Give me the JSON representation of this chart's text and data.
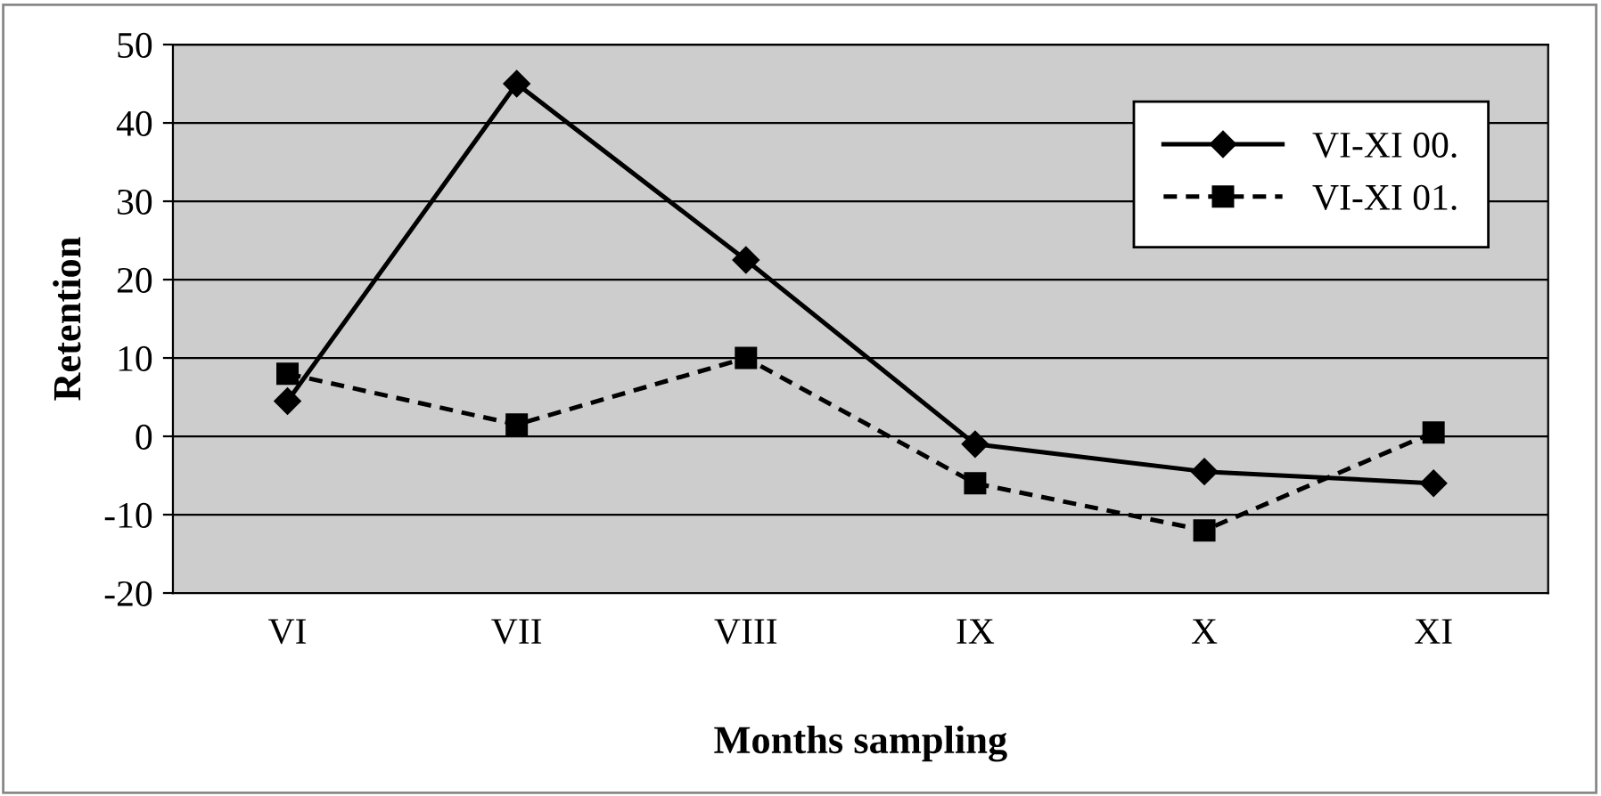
{
  "chart_data": {
    "type": "line",
    "xlabel": "Months sampling",
    "ylabel": "Retention",
    "categories": [
      "VI",
      "VII",
      "VIII",
      "IX",
      "X",
      "XI"
    ],
    "series": [
      {
        "name": "VI-XI 00.",
        "color": "#000000",
        "values": [
          4.5,
          45,
          22.5,
          -1,
          -4.5,
          -6
        ],
        "marker": "diamond",
        "line_style": "solid"
      },
      {
        "name": "VI-XI 01.",
        "color": "#000000",
        "values": [
          8,
          1.5,
          10,
          -6,
          -12,
          0.5
        ],
        "marker": "square",
        "line_style": "dashed"
      }
    ],
    "ylim": [
      -20,
      50
    ],
    "yticks": [
      -20,
      -10,
      0,
      10,
      20,
      30,
      40,
      50
    ],
    "grid": "y",
    "legend": "top right"
  }
}
